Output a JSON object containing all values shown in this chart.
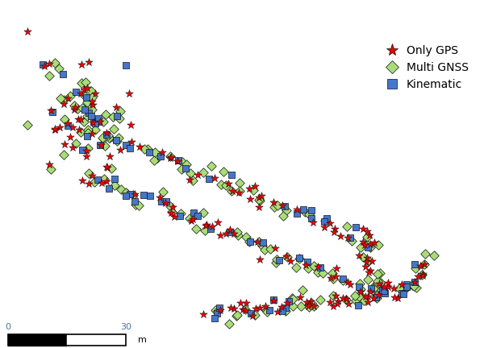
{
  "legend_labels": [
    "Only GPS",
    "Multi GNSS",
    "Kinematic"
  ],
  "gps_color": "#EE0000",
  "gnss_color": "#AADD77",
  "kinematic_color": "#4477CC",
  "marker_edgecolor": "#111111",
  "scale_bar_label": "30",
  "scale_bar_unit": "m",
  "background_color": "#FFFFFF",
  "seed": 7,
  "noise_scale": 0.008
}
